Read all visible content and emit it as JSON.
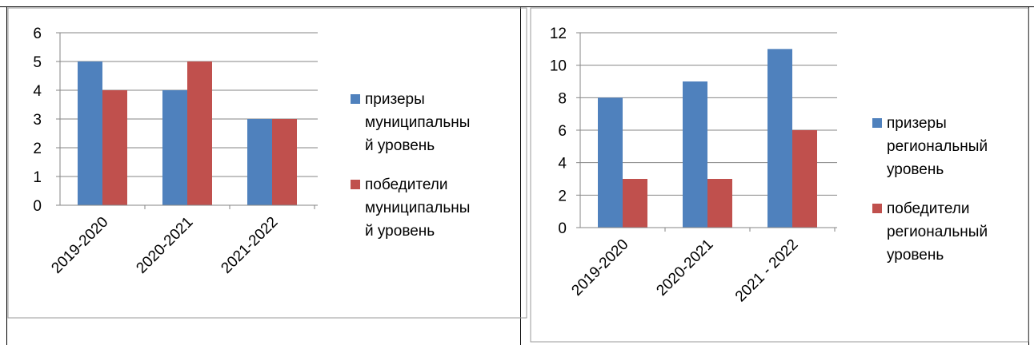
{
  "colors": {
    "series_a": "#4f81bd",
    "series_b": "#c0504d",
    "grid": "#868686",
    "frame": "#9a9a9a"
  },
  "chart_data": [
    {
      "type": "bar",
      "categories": [
        "2019-2020",
        "2020-2021",
        "2021-2022"
      ],
      "ylim": [
        0,
        6
      ],
      "yticks": [
        "0",
        "1",
        "2",
        "3",
        "4",
        "5",
        "6"
      ],
      "grid": true,
      "legend_position": "right",
      "series": [
        {
          "name": "призеры муниципальный уровень",
          "legend_lines": [
            "призеры",
            "муниципальны",
            "й уровень"
          ],
          "values": [
            5,
            4,
            3
          ]
        },
        {
          "name": "победители муниципальный уровень",
          "legend_lines": [
            "победители",
            "муниципальны",
            "й уровень"
          ],
          "values": [
            4,
            5,
            3
          ]
        }
      ]
    },
    {
      "type": "bar",
      "categories": [
        "2019-2020",
        "2020-2021",
        "2021 - 2022"
      ],
      "ylim": [
        0,
        12
      ],
      "yticks": [
        "0",
        "2",
        "4",
        "6",
        "8",
        "10",
        "12"
      ],
      "grid": true,
      "legend_position": "right",
      "series": [
        {
          "name": "призеры региональный уровень",
          "legend_lines": [
            "призеры",
            "региональный",
            "уровень"
          ],
          "values": [
            8,
            9,
            11
          ]
        },
        {
          "name": "победители региональный уровень",
          "legend_lines": [
            "победители",
            "региональный",
            "уровень"
          ],
          "values": [
            3,
            3,
            6
          ]
        }
      ]
    }
  ]
}
